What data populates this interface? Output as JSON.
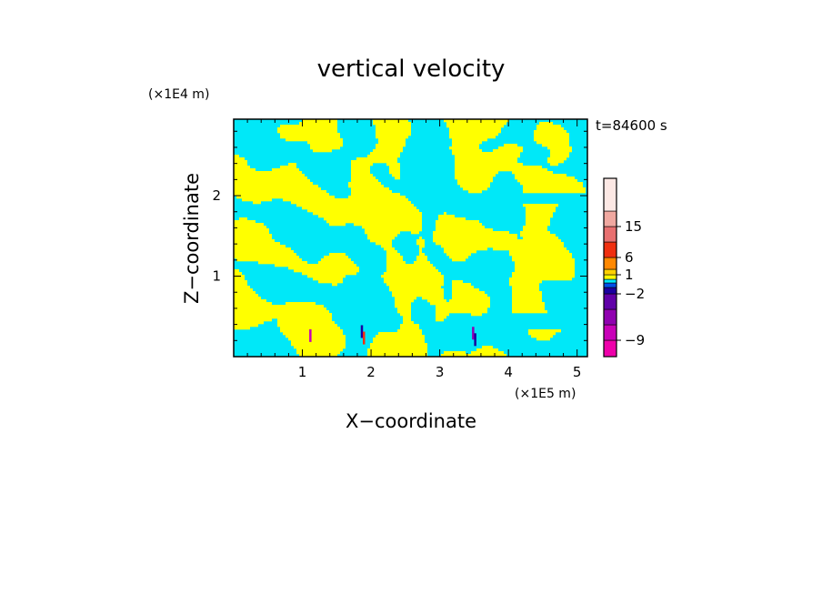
{
  "chart_data": {
    "type": "heatmap",
    "title": "vertical velocity",
    "xlabel": "X−coordinate",
    "ylabel": "Z−coordinate",
    "x_unit": "(×1E5 m)",
    "y_unit": "(×1E4 m)",
    "time_label": "t=84600 s",
    "xlim": [
      0,
      5.15
    ],
    "ylim": [
      0,
      2.95
    ],
    "x_ticks": [
      1,
      2,
      3,
      4,
      5
    ],
    "x_tick_labels": [
      "1",
      "2",
      "3",
      "4",
      "5"
    ],
    "y_ticks": [
      1,
      2
    ],
    "y_tick_labels": [
      "1",
      "2"
    ],
    "field_colors": {
      "positive": "#ffff00",
      "negative": "#00e8f8"
    },
    "colorbar": {
      "levels": [
        -12,
        -9,
        -6,
        -4,
        -2,
        -1,
        0,
        0.5,
        1,
        3,
        6,
        10,
        15,
        20,
        25
      ],
      "colors": [
        "#ee00aa",
        "#c800b8",
        "#9000b0",
        "#6000a8",
        "#1a00a0",
        "#0050e8",
        "#00e8f8",
        "#ffff00",
        "#ffd000",
        "#ff8800",
        "#f03010",
        "#e87070",
        "#f0a8a0",
        "#fce8e4"
      ],
      "tick_labels": [
        {
          "label": "15",
          "value": 15
        },
        {
          "label": "6",
          "value": 6
        },
        {
          "label": "1",
          "value": 1
        },
        {
          "label": "−2",
          "value": -2
        },
        {
          "label": "−9",
          "value": -9
        }
      ]
    },
    "seed": 7
  }
}
